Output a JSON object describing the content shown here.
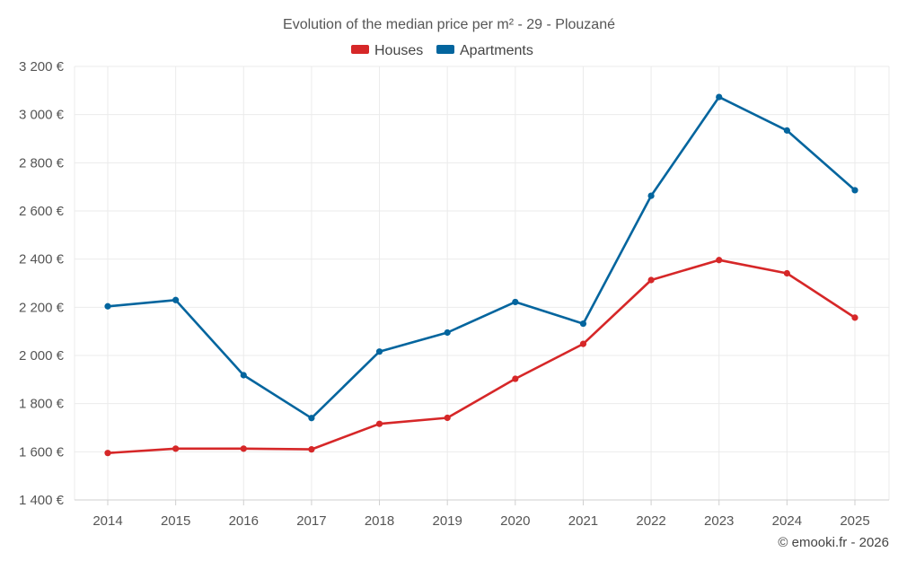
{
  "chart_data": {
    "type": "line",
    "title": "Evolution of the median price per m² - 29 - Plouzané",
    "categories": [
      "2014",
      "2015",
      "2016",
      "2017",
      "2018",
      "2019",
      "2020",
      "2021",
      "2022",
      "2023",
      "2024",
      "2025"
    ],
    "series": [
      {
        "name": "Houses",
        "color": "#d62728",
        "values": [
          1595,
          1613,
          1613,
          1610,
          1716,
          1741,
          1903,
          2048,
          2313,
          2396,
          2341,
          2157
        ]
      },
      {
        "name": "Apartments",
        "color": "#03659e",
        "values": [
          2204,
          2230,
          1918,
          1740,
          2016,
          2095,
          2222,
          2132,
          2663,
          3073,
          2934,
          2686
        ]
      }
    ],
    "ylim": [
      1400,
      3200
    ],
    "yticks": [
      {
        "value": 1400,
        "label": "1 400 €"
      },
      {
        "value": 1600,
        "label": "1 600 €"
      },
      {
        "value": 1800,
        "label": "1 800 €"
      },
      {
        "value": 2000,
        "label": "2 000 €"
      },
      {
        "value": 2200,
        "label": "2 200 €"
      },
      {
        "value": 2400,
        "label": "2 400 €"
      },
      {
        "value": 2600,
        "label": "2 600 €"
      },
      {
        "value": 2800,
        "label": "2 800 €"
      },
      {
        "value": 3000,
        "label": "3 000 €"
      },
      {
        "value": 3200,
        "label": "3 200 €"
      }
    ],
    "xlabel": "",
    "ylabel": "",
    "grid": true,
    "legend_position": "top-center"
  },
  "credit": "© emooki.fr - 2026"
}
